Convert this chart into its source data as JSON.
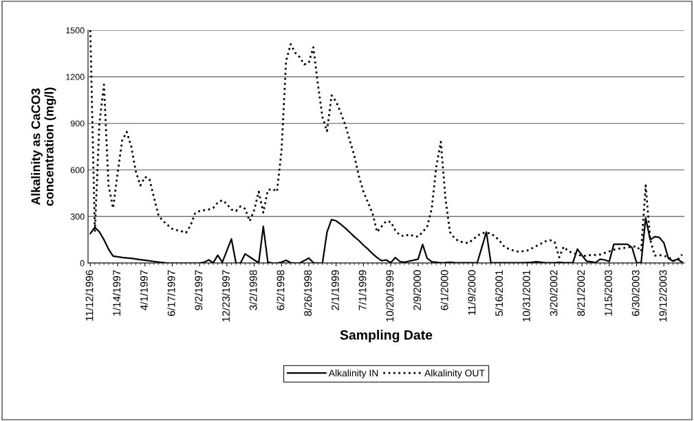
{
  "chart_data": {
    "type": "line",
    "xlabel": "Sampling Date",
    "ylabel": "Alkalinity as CaCO3\nconcentration (mg/l)",
    "categories": [
      "11/12/1996",
      null,
      null,
      null,
      null,
      null,
      "1/14/1997",
      null,
      null,
      null,
      null,
      null,
      "4/1/1997",
      null,
      null,
      null,
      null,
      null,
      "6/17/1997",
      null,
      null,
      null,
      null,
      null,
      "9/2/1997",
      null,
      null,
      null,
      null,
      null,
      "12/23/1997",
      null,
      null,
      null,
      null,
      null,
      "3/2/1998",
      null,
      null,
      null,
      null,
      null,
      "6/2/1998",
      null,
      null,
      null,
      null,
      null,
      "8/26/1998",
      null,
      null,
      null,
      null,
      null,
      "2/1/1999",
      null,
      null,
      null,
      null,
      null,
      "7/1/1999",
      null,
      null,
      null,
      null,
      null,
      "10/20/1999",
      null,
      null,
      null,
      null,
      null,
      "2/9/2000",
      null,
      null,
      null,
      null,
      null,
      "6/1/2000",
      null,
      null,
      null,
      null,
      null,
      "11/9/2000",
      null,
      null,
      null,
      null,
      null,
      "5/16/2001",
      null,
      null,
      null,
      null,
      null,
      "10/31/2001",
      null,
      null,
      null,
      null,
      null,
      "3/20/2002",
      null,
      null,
      null,
      null,
      null,
      "8/21/2002",
      null,
      null,
      null,
      null,
      null,
      "1/15/2003",
      null,
      null,
      null,
      null,
      null,
      "6/30/2003",
      null,
      null,
      null,
      null,
      null,
      "19/12/2003",
      null,
      null,
      null,
      null
    ],
    "series": [
      {
        "name": "Alkalinity IN",
        "color": "#000000",
        "line_style": "solid",
        "values": [
          190,
          230,
          200,
          150,
          90,
          45,
          40,
          36,
          33,
          30,
          26,
          22,
          18,
          14,
          10,
          6,
          3,
          0,
          0,
          0,
          0,
          0,
          0,
          0,
          0,
          5,
          20,
          2,
          50,
          5,
          80,
          155,
          0,
          0,
          59,
          40,
          20,
          2,
          236,
          5,
          0,
          0,
          5,
          18,
          2,
          0,
          0,
          15,
          32,
          2,
          0,
          0,
          200,
          280,
          272,
          250,
          225,
          198,
          170,
          145,
          115,
          90,
          60,
          35,
          15,
          20,
          2,
          35,
          10,
          5,
          12,
          18,
          25,
          120,
          30,
          8,
          5,
          2,
          3,
          5,
          3,
          2,
          2,
          2,
          2,
          2,
          100,
          200,
          2,
          2,
          2,
          2,
          2,
          2,
          2,
          2,
          3,
          5,
          8,
          5,
          2,
          2,
          2,
          5,
          2,
          2,
          2,
          90,
          50,
          12,
          8,
          3,
          25,
          20,
          10,
          121,
          121,
          121,
          121,
          100,
          2,
          2,
          290,
          150,
          170,
          165,
          130,
          30,
          12,
          25,
          5
        ]
      },
      {
        "name": "Alkalinity OUT",
        "color": "#000000",
        "line_style": "dotted",
        "values": [
          1500,
          200,
          900,
          1150,
          500,
          354,
          580,
          790,
          845,
          750,
          590,
          500,
          555,
          540,
          420,
          305,
          270,
          245,
          220,
          212,
          205,
          195,
          240,
          320,
          335,
          340,
          345,
          355,
          390,
          405,
          380,
          345,
          335,
          365,
          350,
          270,
          340,
          460,
          325,
          470,
          478,
          460,
          722,
          1300,
          1410,
          1355,
          1326,
          1280,
          1290,
          1390,
          1150,
          940,
          850,
          1080,
          1040,
          970,
          890,
          790,
          690,
          560,
          460,
          390,
          320,
          200,
          236,
          270,
          265,
          210,
          180,
          172,
          184,
          175,
          170,
          199,
          235,
          350,
          620,
          781,
          420,
          200,
          160,
          140,
          133,
          128,
          150,
          175,
          192,
          195,
          190,
          169,
          140,
          103,
          90,
          80,
          74,
          76,
          81,
          95,
          110,
          125,
          140,
          147,
          135,
          37,
          105,
          75,
          66,
          55,
          45,
          48,
          52,
          52,
          55,
          65,
          75,
          86,
          92,
          96,
          100,
          104,
          108,
          76,
          500,
          150,
          48,
          52,
          46,
          40,
          15,
          20,
          55
        ]
      }
    ],
    "ylim": [
      0,
      1500
    ],
    "yticks": [
      0,
      300,
      600,
      900,
      1200,
      1500
    ],
    "grid": "y",
    "legend": "bottom"
  }
}
